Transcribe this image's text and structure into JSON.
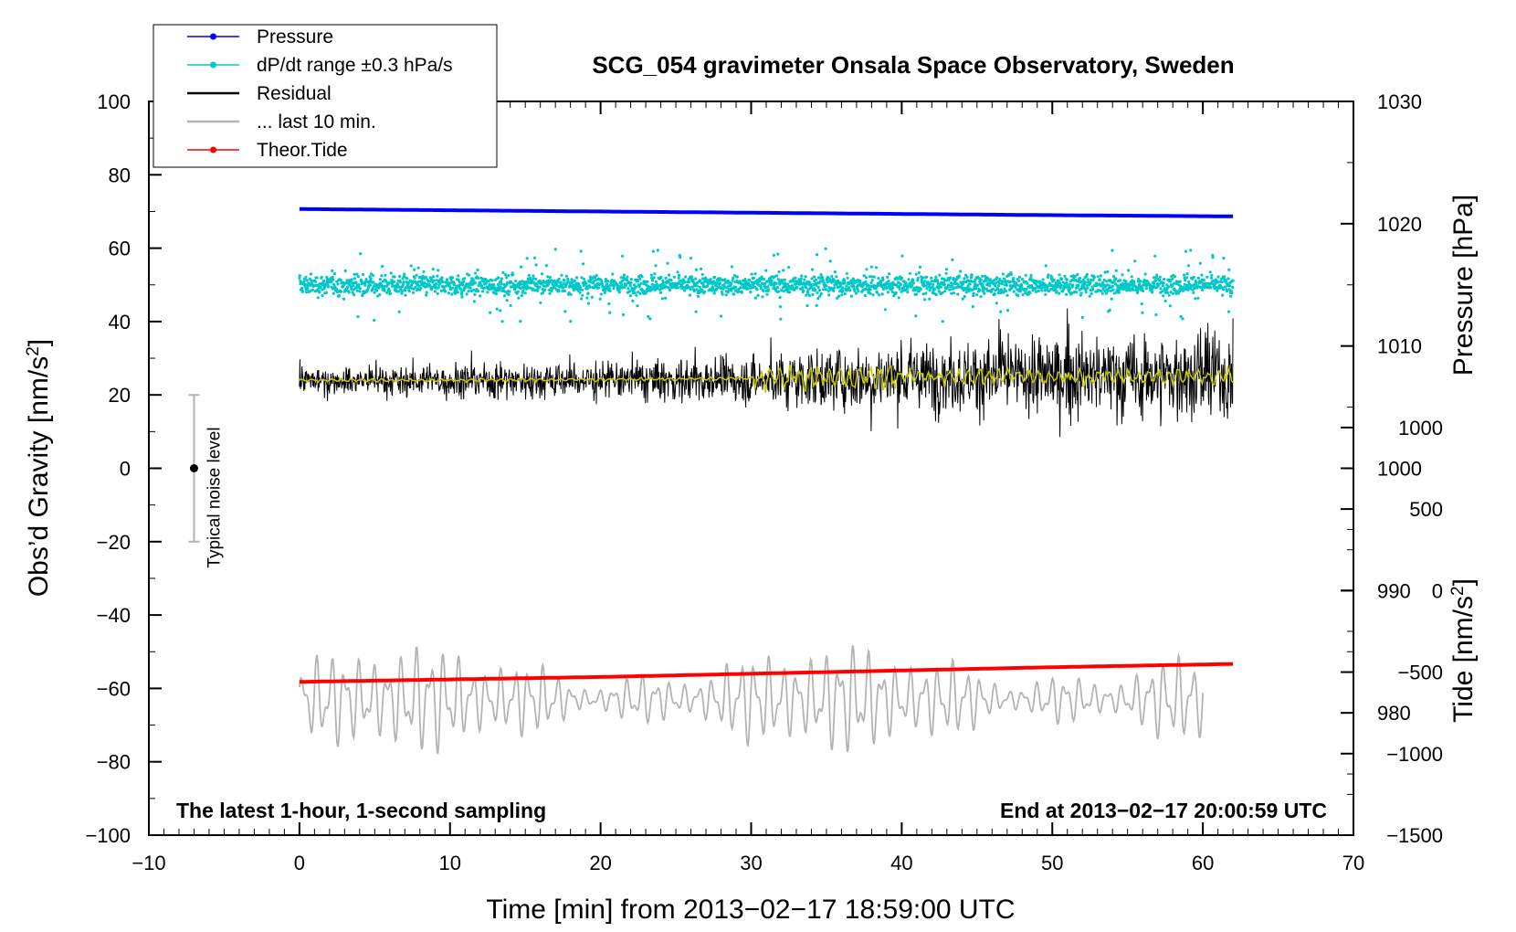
{
  "chart_data": {
    "type": "line",
    "title": "SCG_054 gravimeter Onsala Space Observatory, Sweden",
    "xlabel": "Time [min] from 2013−02−17 18:59:00 UTC",
    "ylabel_main": "Obs’d Gravity [nm/s",
    "ylabel_main_sup": "2",
    "ylabel_main_end": "]",
    "ylabel_pressure": "Pressure [hPa]",
    "ylabel_tide": "Tide [nm/s",
    "ylabel_tide_sup": "2",
    "ylabel_tide_end": "]",
    "xlim": [
      -10,
      70
    ],
    "ylim": [
      -100,
      100
    ],
    "x_ticks": [
      -10,
      0,
      10,
      20,
      30,
      40,
      50,
      60,
      70
    ],
    "x_tick_labels": [
      "−10",
      "0",
      "10",
      "20",
      "30",
      "40",
      "50",
      "60",
      "70"
    ],
    "y_ticks": [
      -100,
      -80,
      -60,
      -40,
      -20,
      0,
      20,
      40,
      60,
      80,
      100
    ],
    "y_tick_labels": [
      "−100",
      "−80",
      "−60",
      "−40",
      "−20",
      "0",
      "20",
      "40",
      "60",
      "80",
      "100"
    ],
    "pressure_axis": {
      "ylim": [
        970,
        1030
      ],
      "ticks": [
        980,
        990,
        1000,
        1010,
        1020,
        1030
      ],
      "tick_labels": [
        "980",
        "990",
        "1000",
        "1010",
        "1020",
        "1030"
      ]
    },
    "tide_axis": {
      "ylim": [
        -1500,
        3000
      ],
      "ticks": [
        -1500,
        -1000,
        -500,
        0,
        500,
        1000
      ],
      "tick_labels": [
        "−1500",
        "−1000",
        "−500",
        "0",
        "500",
        "1000"
      ]
    },
    "annotation_left": "The latest 1-hour, 1-second sampling",
    "annotation_right": "End at 2013−02−17 20:00:59 UTC",
    "noise_bar": {
      "x": -7,
      "center": 0,
      "low": -20,
      "high": 20,
      "label": "Typical noise level"
    },
    "legend": [
      {
        "name": "Pressure",
        "color": "#0000ff",
        "marker": true
      },
      {
        "name": "dP/dt range ±0.3 hPa/s",
        "color": "#00c8c8",
        "marker": true
      },
      {
        "name": "Residual",
        "color": "#000000",
        "marker": false
      },
      {
        "name": "... last 10 min.",
        "color": "#b4b4b4",
        "marker": false
      },
      {
        "name": "Theor.Tide",
        "color": "#ff0000",
        "marker": true
      }
    ],
    "series": [
      {
        "name": "Pressure",
        "axis": "pressure",
        "x": [
          0,
          10,
          20,
          30,
          40,
          50,
          62
        ],
        "values": [
          1021.2,
          1021.1,
          1021.0,
          1020.9,
          1020.8,
          1020.7,
          1020.6
        ],
        "color": "#0000ff"
      },
      {
        "name": "dP/dt range",
        "axis": "main",
        "x_range": [
          0,
          62
        ],
        "center": 50,
        "spread": 2.5,
        "outlier_max": 10,
        "color": "#00c8c8"
      },
      {
        "name": "Residual",
        "axis": "main",
        "x": [
          0,
          10,
          20,
          30,
          40,
          50,
          62
        ],
        "center": [
          24,
          24,
          24,
          24,
          25,
          25,
          25
        ],
        "amplitude": [
          4,
          5,
          6,
          7,
          10,
          12,
          14
        ],
        "color": "#000000"
      },
      {
        "name": "Residual (smoothed)",
        "axis": "main",
        "x": [
          0,
          10,
          20,
          30,
          40,
          50,
          62
        ],
        "values": [
          24,
          24,
          24.2,
          24.5,
          25,
          25,
          25
        ],
        "color": "#c8c800"
      },
      {
        "name": "... last 10 min.",
        "axis": "main",
        "x_range": [
          0,
          60
        ],
        "center": -63,
        "amplitude": 10,
        "color": "#b4b4b4"
      },
      {
        "name": "Theor.Tide",
        "axis": "tide",
        "x": [
          0,
          10,
          20,
          30,
          40,
          50,
          62
        ],
        "values": [
          -560,
          -545,
          -530,
          -510,
          -490,
          -470,
          -450
        ],
        "color": "#ff0000"
      }
    ]
  }
}
